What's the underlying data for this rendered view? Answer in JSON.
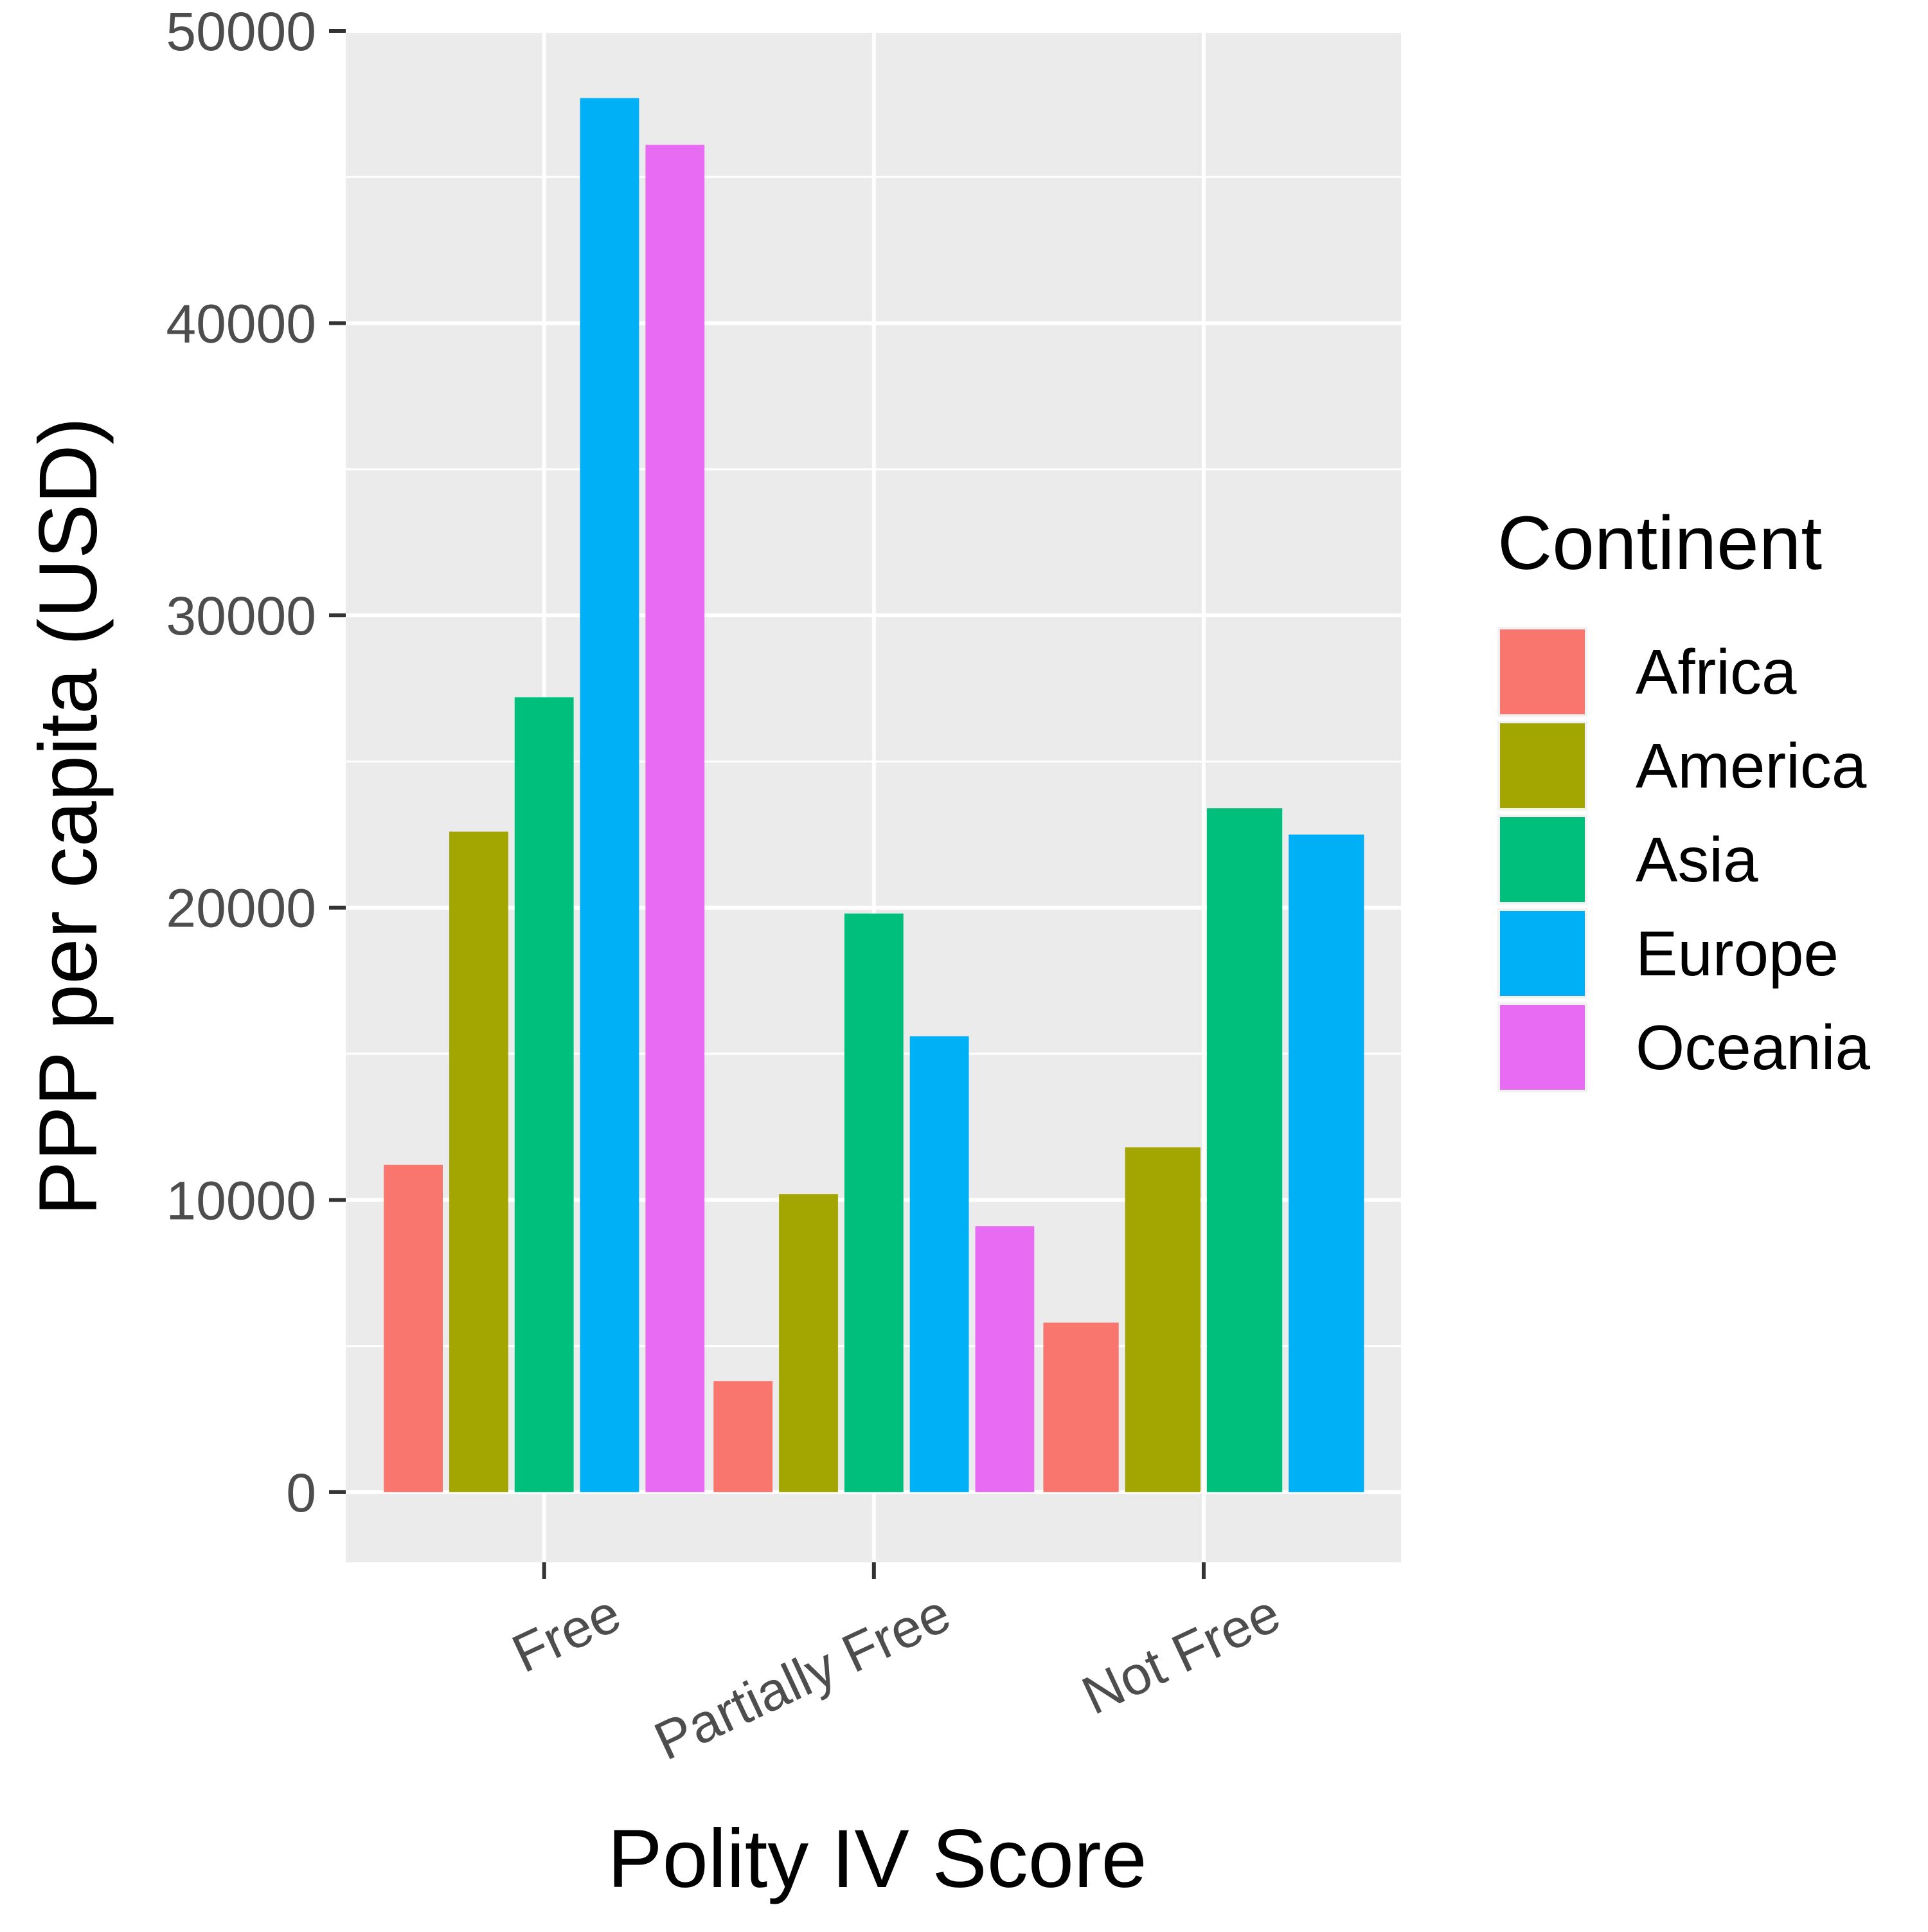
{
  "chart_data": {
    "type": "bar",
    "categories": [
      "Free",
      "Partially Free",
      "Not Free"
    ],
    "series": [
      {
        "name": "Africa",
        "color": "#F8766D",
        "values": [
          11200,
          3800,
          5800
        ]
      },
      {
        "name": "America",
        "color": "#A3A500",
        "values": [
          22600,
          10200,
          11800
        ]
      },
      {
        "name": "Asia",
        "color": "#00BF7D",
        "values": [
          27200,
          19800,
          23400
        ]
      },
      {
        "name": "Europe",
        "color": "#00B0F6",
        "values": [
          47700,
          15600,
          22500
        ]
      },
      {
        "name": "Oceania",
        "color": "#E76BF3",
        "values": [
          46100,
          9100,
          null
        ]
      }
    ],
    "title": "",
    "xlabel": "Polity IV Score",
    "ylabel": "PPP per capita (USD)",
    "ylim": [
      -2400,
      50000
    ],
    "yticks": [
      0,
      10000,
      20000,
      30000,
      40000,
      50000
    ],
    "ytick_labels": [
      "0",
      "10000",
      "20000",
      "30000",
      "40000",
      "50000"
    ],
    "grid": true,
    "panel_background": "#EBEBEB",
    "legend": {
      "title": "Continent",
      "position": "right",
      "items": [
        "Africa",
        "America",
        "Asia",
        "Europe",
        "Oceania"
      ]
    }
  }
}
